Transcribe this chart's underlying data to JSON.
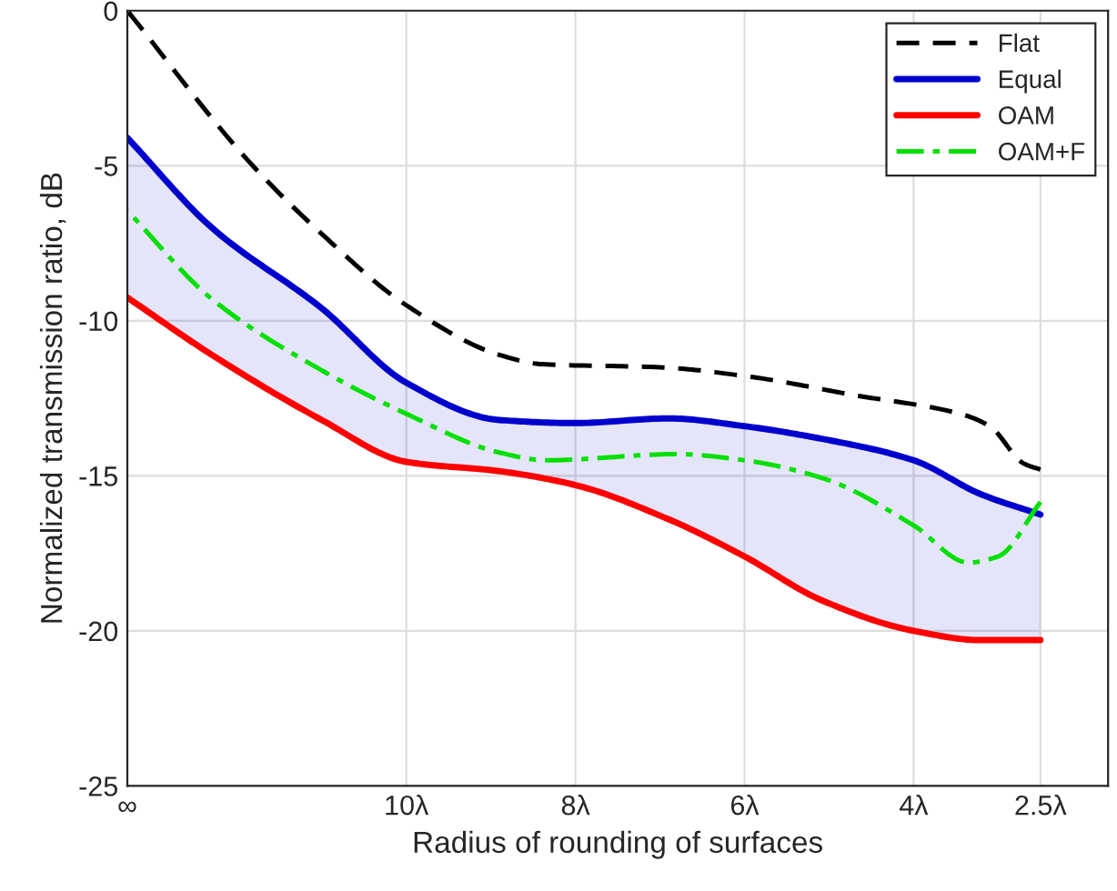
{
  "chart_data": {
    "type": "line",
    "xlabel": "Radius of rounding of surfaces",
    "ylabel": "Normalized transmission ratio, dB",
    "xlim": [
      13.3,
      1.7
    ],
    "xticks": [
      {
        "value": 13.3,
        "label": "∞"
      },
      {
        "value": 10,
        "label": "10λ"
      },
      {
        "value": 8,
        "label": "8λ"
      },
      {
        "value": 6,
        "label": "6λ"
      },
      {
        "value": 4,
        "label": "4λ"
      },
      {
        "value": 2.5,
        "label": "2.5λ"
      }
    ],
    "ylim": [
      -25,
      0
    ],
    "yticks": [
      -25,
      -20,
      -15,
      -10,
      -5,
      0
    ],
    "grid": true,
    "legend": "top right",
    "series": [
      {
        "name": "Flat",
        "color": "#000000",
        "line_style": "dashed",
        "x": [
          13.3,
          11.85,
          11.0,
          10,
          8.9,
          8.4,
          7.0,
          5.95,
          4.7,
          3.45,
          3.1,
          2.7,
          2.5
        ],
        "values": [
          0,
          -4.9,
          -7.2,
          -9.5,
          -11.1,
          -11.4,
          -11.5,
          -11.8,
          -12.4,
          -13.0,
          -13.4,
          -14.6,
          -14.8
        ]
      },
      {
        "name": "Equal",
        "color": "#0000cd",
        "line_style": "solid",
        "x": [
          13.3,
          12.3,
          11.0,
          10,
          8.9,
          8,
          6.9,
          6,
          5.1,
          4,
          3.2,
          2.5
        ],
        "values": [
          -4.1,
          -7.0,
          -9.6,
          -12.0,
          -13.2,
          -13.3,
          -13.15,
          -13.4,
          -13.8,
          -14.5,
          -15.6,
          -16.25
        ],
        "upper": [
          -4.1,
          -7.0,
          -9.6,
          -12.0,
          -13.2,
          -13.3,
          -13.15,
          -13.4,
          -13.8,
          -14.5,
          -15.6,
          -16.25
        ],
        "lower": [
          -9.25,
          -11.1,
          -13.2,
          -14.55,
          -14.85,
          -15.3,
          -16.4,
          -17.6,
          -19.0,
          -20.0,
          -20.3,
          -20.3
        ]
      },
      {
        "name": "OAM",
        "color": "#ff0000",
        "line_style": "solid",
        "x": [
          13.3,
          12.3,
          11.0,
          10,
          8.9,
          8,
          6.9,
          6,
          5.1,
          4,
          3.2,
          2.5
        ],
        "values": [
          -9.25,
          -11.1,
          -13.2,
          -14.55,
          -14.85,
          -15.3,
          -16.4,
          -17.6,
          -19.0,
          -20.0,
          -20.3,
          -20.3
        ]
      },
      {
        "name": "OAM+F",
        "color": "#00e000",
        "line_style": "dashdot",
        "x": [
          13.3,
          12.3,
          11.0,
          10,
          8.9,
          8.35,
          6.8,
          6,
          5.05,
          4,
          3.35,
          3.0,
          2.5
        ],
        "values": [
          -6.45,
          -9.3,
          -11.6,
          -13.0,
          -14.25,
          -14.5,
          -14.3,
          -14.5,
          -15.1,
          -16.6,
          -17.8,
          -17.6,
          -15.85
        ]
      }
    ]
  }
}
